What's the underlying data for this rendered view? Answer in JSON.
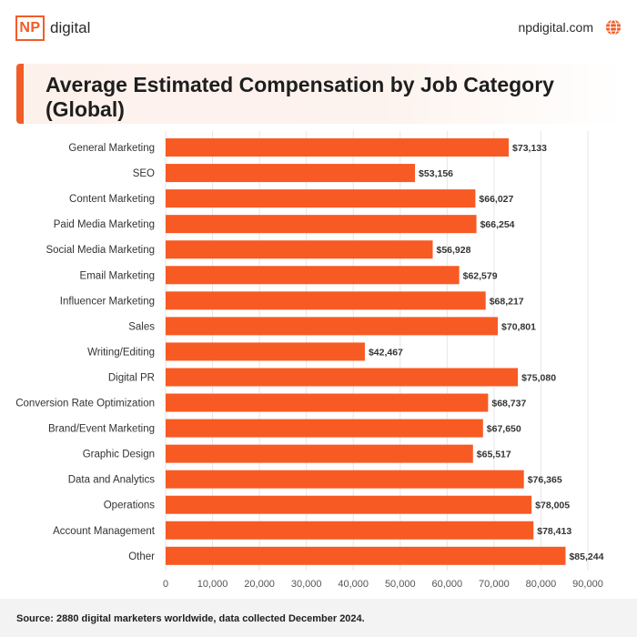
{
  "header": {
    "logo_mark": "NP",
    "logo_word": "digital",
    "site": "npdigital.com",
    "site_icon": "globe-icon"
  },
  "title": "Average Estimated Compensation by Job Category (Global)",
  "source": "Source: 2880 digital marketers worldwide, data collected December 2024.",
  "colors": {
    "accent": "#f25c27",
    "bar": "#f85a24",
    "grid": "#e6e6e6"
  },
  "chart_data": {
    "type": "bar",
    "orientation": "horizontal",
    "categories": [
      "General Marketing",
      "SEO",
      "Content Marketing",
      "Paid Media Marketing",
      "Social Media Marketing",
      "Email Marketing",
      "Influencer Marketing",
      "Sales",
      "Writing/Editing",
      "Digital PR",
      "Conversion Rate Optimization",
      "Brand/Event Marketing",
      "Graphic Design",
      "Data and Analytics",
      "Operations",
      "Account Management",
      "Other"
    ],
    "values": [
      73133,
      53156,
      66027,
      66254,
      56928,
      62579,
      68217,
      70801,
      42467,
      75080,
      68737,
      67650,
      65517,
      76365,
      78005,
      78413,
      85244
    ],
    "value_labels": [
      "$73,133",
      "$53,156",
      "$66,027",
      "$66,254",
      "$56,928",
      "$62,579",
      "$68,217",
      "$70,801",
      "$42,467",
      "$75,080",
      "$68,737",
      "$67,650",
      "$65,517",
      "$76,365",
      "$78,005",
      "$78,413",
      "$85,244"
    ],
    "xlim": [
      0,
      90000
    ],
    "xticks": [
      0,
      10000,
      20000,
      30000,
      40000,
      50000,
      60000,
      70000,
      80000,
      90000
    ],
    "xtick_labels": [
      "0",
      "10,000",
      "20,000",
      "30,000",
      "40,000",
      "50,000",
      "60,000",
      "70,000",
      "80,000",
      "90,000"
    ],
    "grid": true,
    "legend": "none"
  }
}
